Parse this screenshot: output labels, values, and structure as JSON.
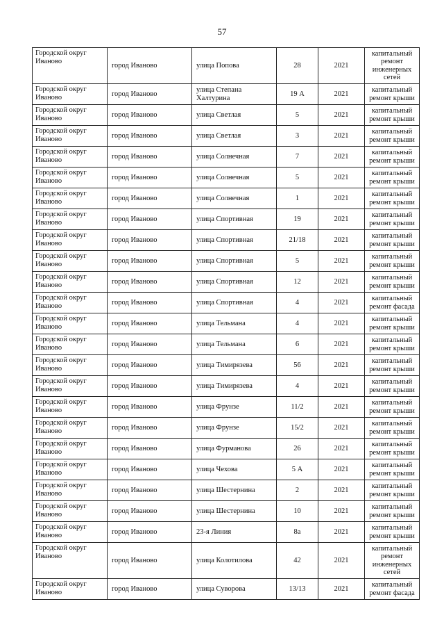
{
  "page_number": "57",
  "table": {
    "rows": [
      [
        "Городской округ Иваново",
        "город Иваново",
        "улица Попова",
        "28",
        "2021",
        "капитальный ремонт инженерных сетей"
      ],
      [
        "Городской округ Иваново",
        "город Иваново",
        "улица Степана Халтурина",
        "19 А",
        "2021",
        "капитальный ремонт крыши"
      ],
      [
        "Городской округ Иваново",
        "город Иваново",
        "улица Светлая",
        "5",
        "2021",
        "капитальный ремонт крыши"
      ],
      [
        "Городской округ Иваново",
        "город Иваново",
        "улица Светлая",
        "3",
        "2021",
        "капитальный ремонт крыши"
      ],
      [
        "Городской округ Иваново",
        "город Иваново",
        "улица Солнечная",
        "7",
        "2021",
        "капитальный ремонт крыши"
      ],
      [
        "Городской округ Иваново",
        "город Иваново",
        "улица Солнечная",
        "5",
        "2021",
        "капитальный ремонт крыши"
      ],
      [
        "Городской округ Иваново",
        "город Иваново",
        "улица Солнечная",
        "1",
        "2021",
        "капитальный ремонт крыши"
      ],
      [
        "Городской округ Иваново",
        "город Иваново",
        "улица Спортивная",
        "19",
        "2021",
        "капитальный ремонт крыши"
      ],
      [
        "Городской округ Иваново",
        "город Иваново",
        "улица Спортивная",
        "21/18",
        "2021",
        "капитальный ремонт крыши"
      ],
      [
        "Городской округ Иваново",
        "город Иваново",
        "улица Спортивная",
        "5",
        "2021",
        "капитальный ремонт крыши"
      ],
      [
        "Городской округ Иваново",
        "город Иваново",
        "улица Спортивная",
        "12",
        "2021",
        "капитальный ремонт крыши"
      ],
      [
        "Городской округ Иваново",
        "город Иваново",
        "улица Спортивная",
        "4",
        "2021",
        "капитальный ремонт фасада"
      ],
      [
        "Городской округ Иваново",
        "город Иваново",
        "улица Тельмана",
        "4",
        "2021",
        "капитальный ремонт крыши"
      ],
      [
        "Городской округ Иваново",
        "город Иваново",
        "улица Тельмана",
        "6",
        "2021",
        "капитальный ремонт крыши"
      ],
      [
        "Городской округ Иваново",
        "город Иваново",
        "улица Тимирязева",
        "56",
        "2021",
        "капитальный ремонт крыши"
      ],
      [
        "Городской округ Иваново",
        "город Иваново",
        "улица Тимирязева",
        "4",
        "2021",
        "капитальный ремонт крыши"
      ],
      [
        "Городской округ Иваново",
        "город Иваново",
        "улица Фрунзе",
        "11/2",
        "2021",
        "капитальный ремонт крыши"
      ],
      [
        "Городской округ Иваново",
        "город Иваново",
        "улица Фрунзе",
        "15/2",
        "2021",
        "капитальный ремонт крыши"
      ],
      [
        "Городской округ Иваново",
        "город Иваново",
        "улица Фурманова",
        "26",
        "2021",
        "капитальный ремонт крыши"
      ],
      [
        "Городской округ Иваново",
        "город Иваново",
        "улица Чехова",
        "5 А",
        "2021",
        "капитальный ремонт крыши"
      ],
      [
        "Городской округ Иваново",
        "город Иваново",
        "улица Шестернина",
        "2",
        "2021",
        "капитальный ремонт крыши"
      ],
      [
        "Городской округ Иваново",
        "город Иваново",
        "улица Шестернина",
        "10",
        "2021",
        "капитальный ремонт крыши"
      ],
      [
        "Городской округ Иваново",
        "город Иваново",
        "23-я Линия",
        "8а",
        "2021",
        "капитальный ремонт крыши"
      ],
      [
        "Городской округ Иваново",
        "город Иваново",
        "улица Колотилова",
        "42",
        "2021",
        "капитальный ремонт инженерных сетей"
      ],
      [
        "Городской округ Иваново",
        "город Иваново",
        "улица Суворова",
        "13/13",
        "2021",
        "капитальный ремонт фасада"
      ]
    ]
  }
}
